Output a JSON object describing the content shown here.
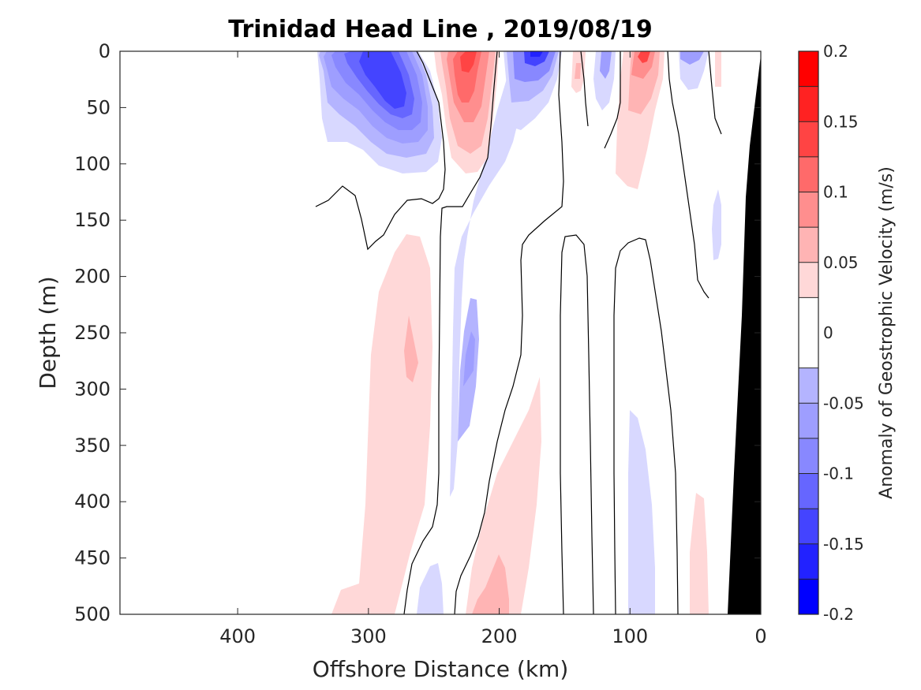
{
  "chart_data": {
    "type": "heatmap",
    "title": "Trinidad Head Line , 2019/08/19",
    "xlabel": "Offshore Distance (km)",
    "ylabel": "Depth (m)",
    "xlim": [
      490,
      0
    ],
    "ylim": [
      0,
      500
    ],
    "x_reversed": true,
    "y_reversed": true,
    "x_ticks": [
      400,
      300,
      200,
      100,
      0
    ],
    "y_ticks": [
      0,
      50,
      100,
      150,
      200,
      250,
      300,
      350,
      400,
      450,
      500
    ],
    "colorbar": {
      "label": "Anomaly of Geostrophic Velocity (m/s)",
      "range": [
        -0.2,
        0.2
      ],
      "ticks": [
        -0.2,
        -0.15,
        -0.1,
        -0.05,
        0,
        0.05,
        0.1,
        0.15,
        0.2
      ],
      "tick_labels": [
        "-0.2",
        "-0.15",
        "-0.1",
        "-0.05",
        "0",
        "0.05",
        "0.1",
        "0.15",
        "0.2"
      ],
      "levels": [
        -0.2,
        -0.175,
        -0.15,
        -0.125,
        -0.1,
        -0.075,
        -0.05,
        -0.025,
        0.025,
        0.05,
        0.075,
        0.1,
        0.125,
        0.15,
        0.175,
        0.2
      ],
      "colors": [
        "#0000ff",
        "#2222ff",
        "#4444ff",
        "#6666ff",
        "#8888ff",
        "#9e9eff",
        "#b4b4ff",
        "#d8d8ff",
        "#ffffff",
        "#ffd8d8",
        "#ffb4b4",
        "#ff8e8e",
        "#ff6a6a",
        "#ff4444",
        "#ff2222",
        "#ff0000"
      ],
      "zero_color": "#ffffff"
    },
    "bottom_mask_color": "#000000",
    "features": [
      {
        "x_km": 283,
        "depth_m": 30,
        "velocity": -0.16
      },
      {
        "x_km": 230,
        "depth_m": 40,
        "velocity": 0.12
      },
      {
        "x_km": 175,
        "depth_m": 10,
        "velocity": -0.18
      },
      {
        "x_km": 137,
        "depth_m": 20,
        "velocity": 0.07
      },
      {
        "x_km": 117,
        "depth_m": 15,
        "velocity": -0.1
      },
      {
        "x_km": 90,
        "depth_m": 10,
        "velocity": 0.16
      },
      {
        "x_km": 53,
        "depth_m": 5,
        "velocity": -0.1
      },
      {
        "x_km": 275,
        "depth_m": 265,
        "velocity": 0.07
      },
      {
        "x_km": 230,
        "depth_m": 300,
        "velocity": -0.08
      },
      {
        "x_km": 200,
        "depth_m": 480,
        "velocity": 0.07
      },
      {
        "x_km": 90,
        "depth_m": 420,
        "velocity": -0.04
      }
    ]
  }
}
